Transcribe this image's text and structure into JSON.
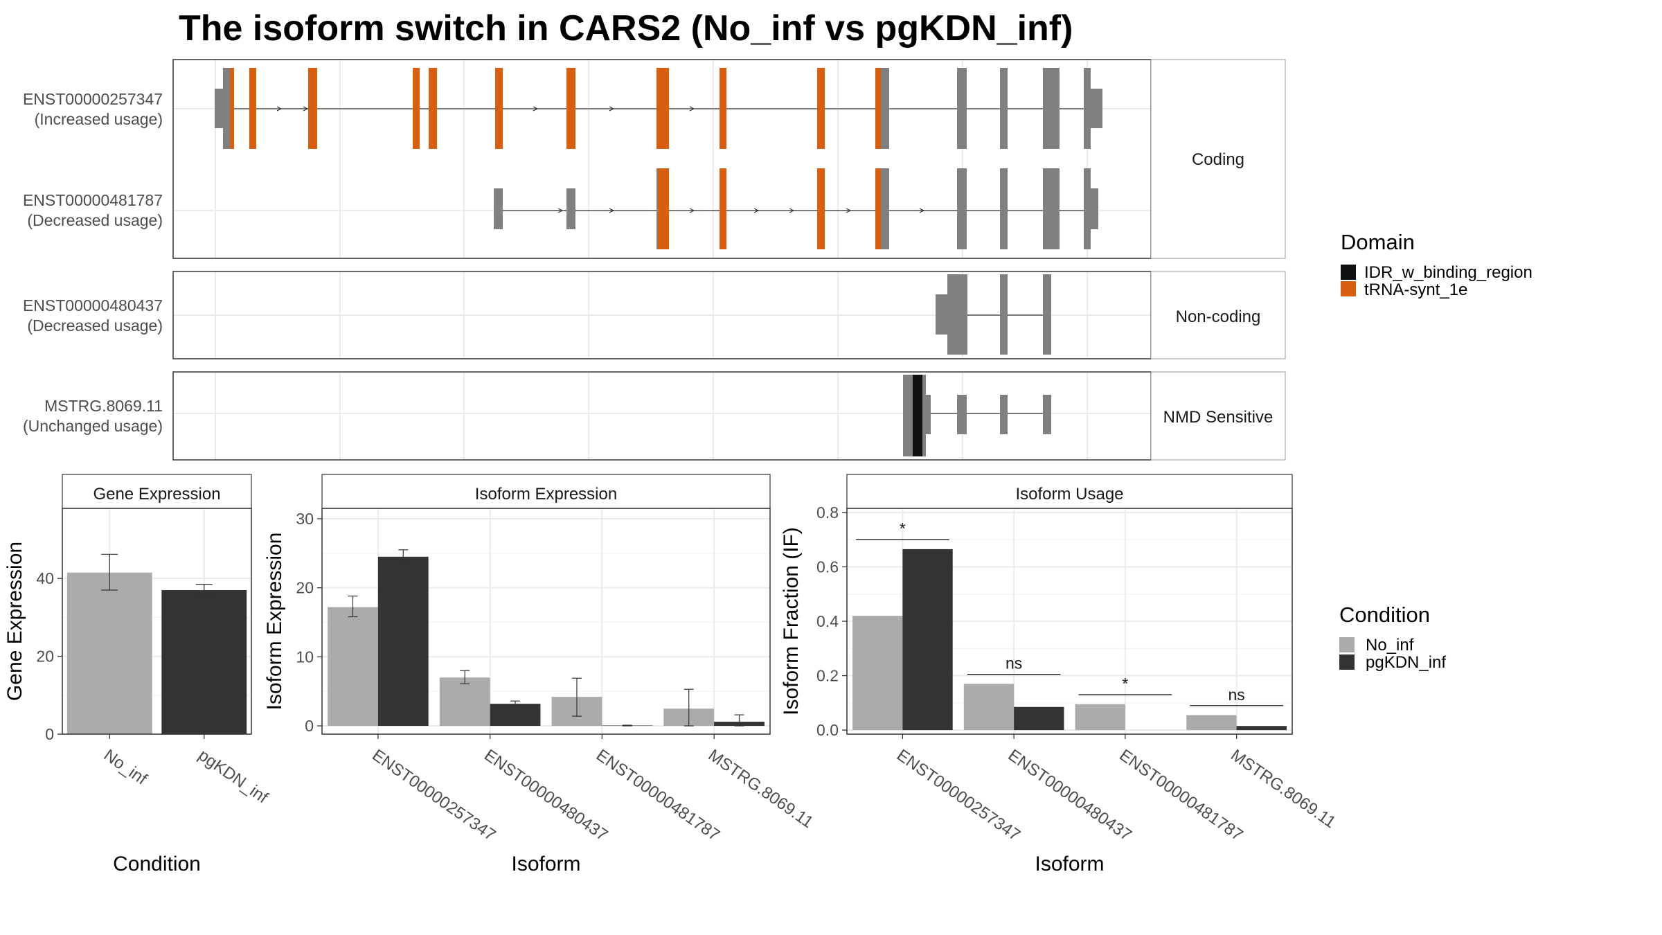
{
  "title": "The isoform switch in CARS2 (No_inf vs pgKDN_inf)",
  "colors": {
    "no_inf": "#ababab",
    "pgkdn_inf": "#333333",
    "trna": "#d95f0e",
    "idr": "#111111",
    "exon_grey": "#808080",
    "panel_border": "#333333",
    "grid": "#ebebeb",
    "strip_border": "#999999"
  },
  "structure": {
    "facets": [
      "Coding",
      "Non-coding",
      "NMD Sensitive"
    ],
    "transcripts": [
      {
        "id": "ENST00000257347",
        "usage": "(Increased usage)",
        "facet": "Coding"
      },
      {
        "id": "ENST00000481787",
        "usage": "(Decreased usage)",
        "facet": "Coding"
      },
      {
        "id": "ENST00000480437",
        "usage": "(Decreased usage)",
        "facet": "Non-coding"
      },
      {
        "id": "MSTRG.8069.11",
        "usage": "(Unchanged usage)",
        "facet": "NMD Sensitive"
      }
    ]
  },
  "domain_legend": {
    "title": "Domain",
    "items": [
      {
        "label": "IDR_w_binding_region",
        "color": "#111111"
      },
      {
        "label": "tRNA-synt_1e",
        "color": "#d95f0e"
      }
    ]
  },
  "condition_legend": {
    "title": "Condition",
    "items": [
      {
        "label": "No_inf",
        "color": "#ababab"
      },
      {
        "label": "pgKDN_inf",
        "color": "#333333"
      }
    ]
  },
  "chart_data": [
    {
      "type": "bar",
      "title": "Gene Expression",
      "xlabel": "Condition",
      "ylabel": "Gene Expression",
      "categories": [
        "No_inf",
        "pgKDN_inf"
      ],
      "values": [
        41.5,
        37.0
      ],
      "error_low": [
        37.0,
        35.8
      ],
      "error_high": [
        46.2,
        38.5
      ],
      "yticks": [
        0,
        20,
        40
      ],
      "ylim": [
        0,
        58
      ]
    },
    {
      "type": "bar",
      "title": "Isoform Expression",
      "xlabel": "Isoform",
      "ylabel": "Isoform Expression",
      "categories": [
        "ENST00000257347",
        "ENST00000480437",
        "ENST00000481787",
        "MSTRG.8069.11"
      ],
      "series": [
        {
          "name": "No_inf",
          "values": [
            17.2,
            7.0,
            4.2,
            2.5
          ],
          "error_low": [
            15.8,
            6.1,
            1.4,
            0.0
          ],
          "error_high": [
            18.8,
            8.0,
            6.9,
            5.3
          ]
        },
        {
          "name": "pgKDN_inf",
          "values": [
            24.5,
            3.2,
            0.05,
            0.6
          ],
          "error_low": [
            23.6,
            2.7,
            0.0,
            0.0
          ],
          "error_high": [
            25.5,
            3.6,
            0.1,
            1.6
          ]
        }
      ],
      "yticks": [
        0,
        10,
        20,
        30
      ],
      "ylim": [
        -1.2,
        31.5
      ]
    },
    {
      "type": "bar",
      "title": "Isoform Usage",
      "xlabel": "Isoform",
      "ylabel": "Isoform Fraction (IF)",
      "categories": [
        "ENST00000257347",
        "ENST00000480437",
        "ENST00000481787",
        "MSTRG.8069.11"
      ],
      "series": [
        {
          "name": "No_inf",
          "values": [
            0.42,
            0.17,
            0.095,
            0.055
          ]
        },
        {
          "name": "pgKDN_inf",
          "values": [
            0.665,
            0.085,
            0.0,
            0.015
          ]
        }
      ],
      "significance": [
        "*",
        "ns",
        "*",
        "ns"
      ],
      "yticks": [
        0.0,
        0.2,
        0.4,
        0.6,
        0.8
      ],
      "ylim": [
        -0.015,
        0.815
      ]
    }
  ]
}
